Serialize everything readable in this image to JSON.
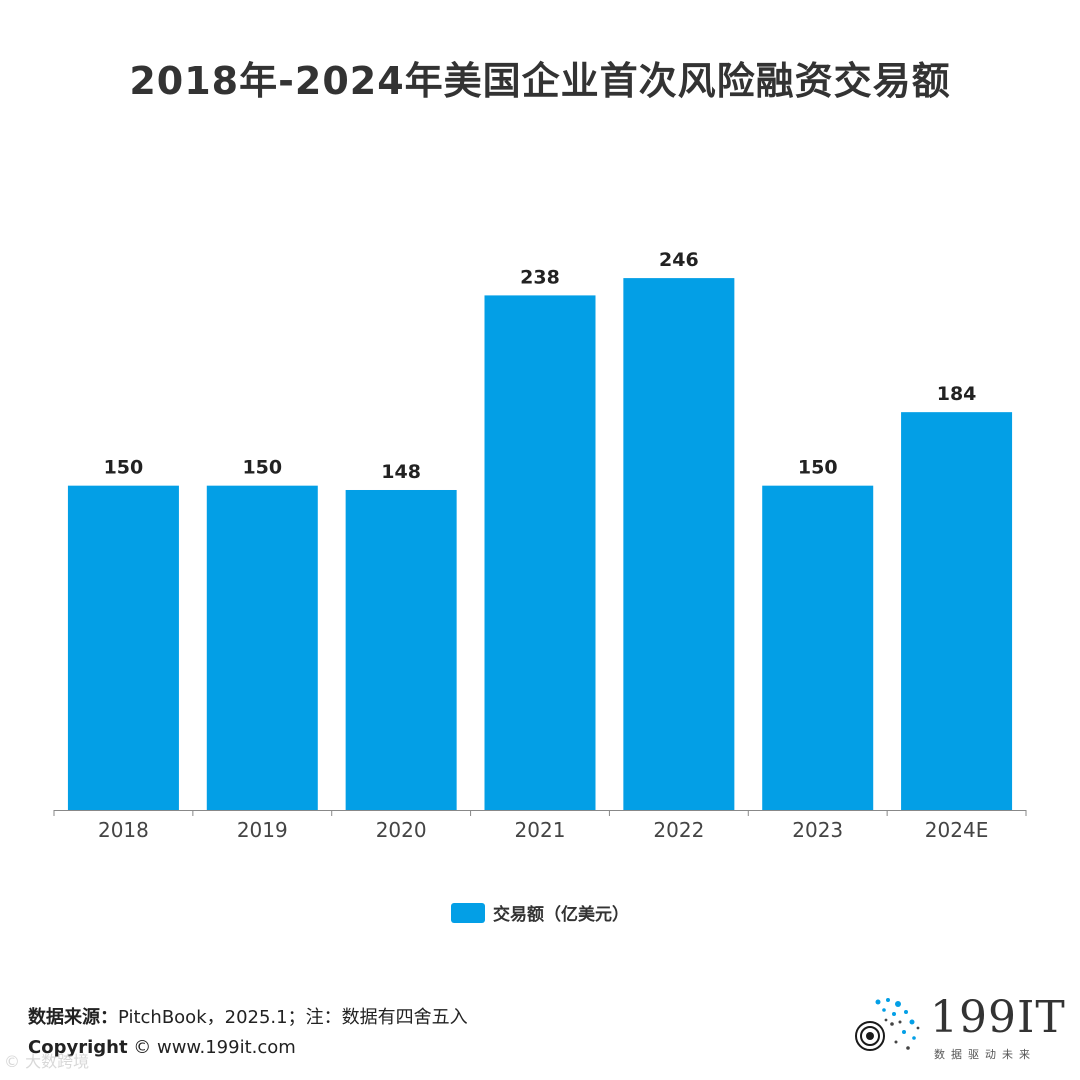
{
  "title": "2018年-2024年美国企业首次风险融资交易额",
  "chart_data": {
    "type": "bar",
    "categories": [
      "2018",
      "2019",
      "2020",
      "2021",
      "2022",
      "2023",
      "2024E"
    ],
    "series": [
      {
        "name": "交易额（亿美元）",
        "values": [
          150,
          150,
          148,
          238,
          246,
          150,
          184
        ]
      }
    ],
    "data_labels": [
      "150",
      "150",
      "148",
      "238",
      "246",
      "150",
      "184"
    ],
    "ylim": [
      0,
      300
    ],
    "legend_position": "bottom",
    "bar_color": "#039FE6"
  },
  "legend": {
    "label": "交易额（亿美元）"
  },
  "footer": {
    "source_label": "数据来源：",
    "source_text": "PitchBook，2025.1；注：数据有四舍五入",
    "copyright_label": "Copyright",
    "copyright_text": " © www.199it.com",
    "watermark": "© 大数跨境"
  },
  "logo": {
    "text": "199IT",
    "subtitle": "数据驱动未来"
  }
}
